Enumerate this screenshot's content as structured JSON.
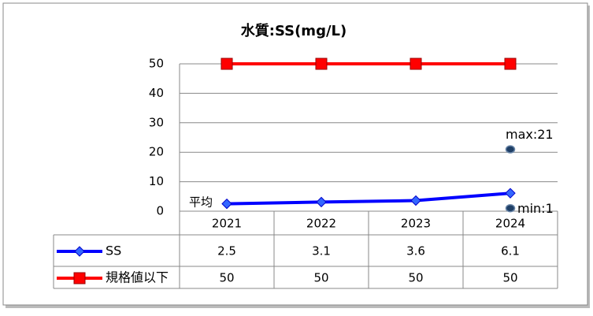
{
  "chart_data": {
    "type": "line",
    "title": "水質:SS(mg/L)",
    "categories": [
      "2021",
      "2022",
      "2023",
      "2024"
    ],
    "series": [
      {
        "name": "SS",
        "color": "#0000ff",
        "marker_color": "#3366ff",
        "marker": "diamond",
        "values": [
          2.5,
          3.1,
          3.6,
          6.1
        ]
      },
      {
        "name": "規格値以下",
        "color": "#ff0000",
        "marker_color": "#ff0000",
        "marker": "square",
        "values": [
          50,
          50,
          50,
          50
        ]
      }
    ],
    "ylim": [
      0,
      50
    ],
    "yticks": [
      0,
      10,
      20,
      30,
      40,
      50
    ],
    "grid": true,
    "data_table": true,
    "annotations": [
      {
        "text": "max:21",
        "x": "2024",
        "value": 21
      },
      {
        "text": "min:1",
        "x": "2024",
        "value": 1
      },
      {
        "text": "平均"
      }
    ]
  }
}
